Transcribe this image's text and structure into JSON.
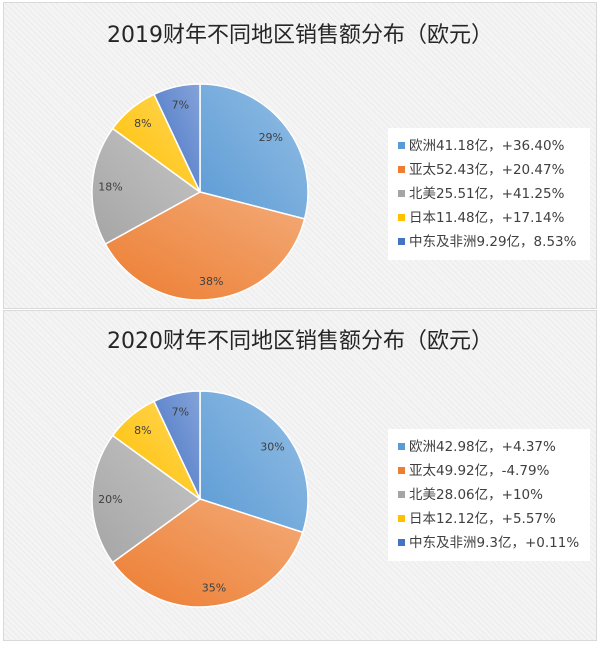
{
  "colors": [
    "#5b9bd5",
    "#ed7d31",
    "#a5a5a5",
    "#ffc000",
    "#4472c4"
  ],
  "chart_data": [
    {
      "type": "pie",
      "title": "2019财年不同地区销售额分布（欧元）",
      "categories": [
        "欧洲",
        "亚太",
        "北美",
        "日本",
        "中东及非洲"
      ],
      "values": [
        29,
        38,
        18,
        8,
        7
      ],
      "value_labels": [
        "29%",
        "38%",
        "18%",
        "8%",
        "7%"
      ],
      "legend": [
        "欧洲41.18亿，+36.40%",
        "亚太52.43亿，+20.47%",
        "北美25.51亿，+41.25%",
        "日本11.48亿，+17.14%",
        "中东及非洲9.29亿，8.53%"
      ],
      "legend_position": "right"
    },
    {
      "type": "pie",
      "title": "2020财年不同地区销售额分布（欧元）",
      "categories": [
        "欧洲",
        "亚太",
        "北美",
        "日本",
        "中东及非洲"
      ],
      "values": [
        30,
        35,
        20,
        8,
        7
      ],
      "value_labels": [
        "30%",
        "35%",
        "20%",
        "8%",
        "7%"
      ],
      "legend": [
        "欧洲42.98亿，+4.37%",
        "亚太49.92亿，-4.79%",
        "北美28.06亿，+10%",
        "日本12.12亿，+5.57%",
        "中东及非洲9.3亿，+0.11%"
      ],
      "legend_position": "right"
    }
  ]
}
